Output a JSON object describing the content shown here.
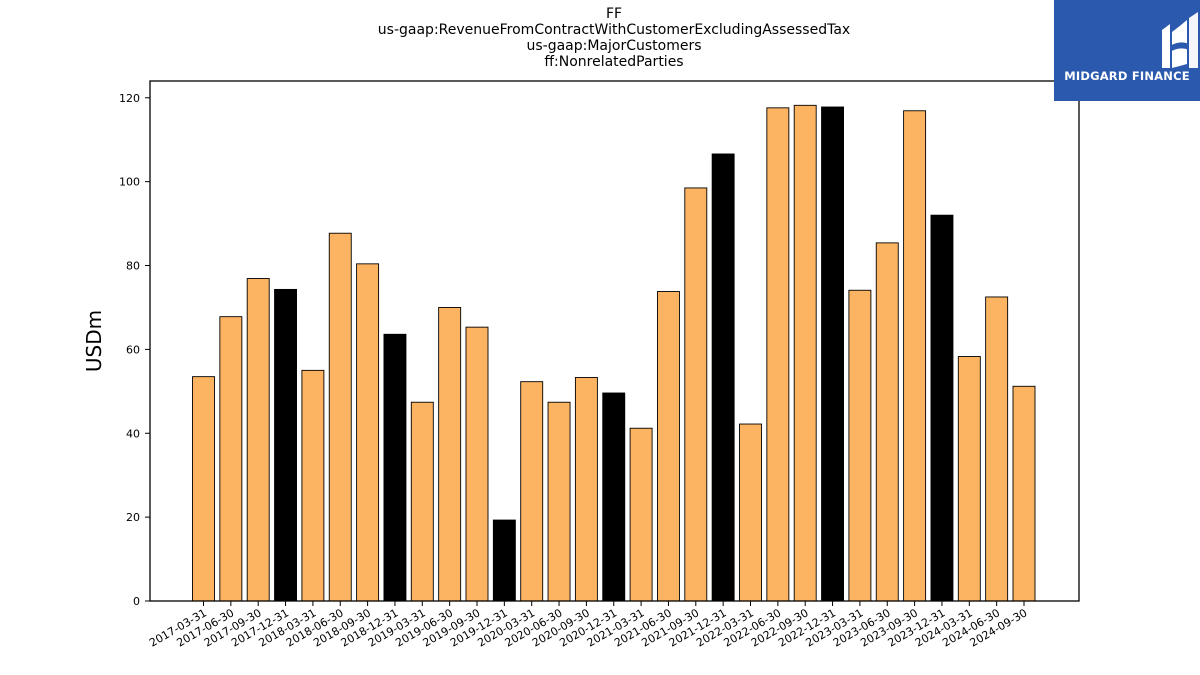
{
  "title_lines": [
    "FF",
    "us-gaap:RevenueFromContractWithCustomerExcludingAssessedTax",
    "us-gaap:MajorCustomers",
    "ff:NonrelatedParties"
  ],
  "logo": {
    "text": "MIDGARD FINANCE",
    "background": "#2b59ad"
  },
  "colors": {
    "quarter_bar": "#fdb462",
    "year_end_bar": "#000000",
    "bar_edge": "#000000"
  },
  "chart_data": {
    "type": "bar",
    "title": "FF\nus-gaap:RevenueFromContractWithCustomerExcludingAssessedTax\nus-gaap:MajorCustomers\nff:NonrelatedParties",
    "xlabel": "",
    "ylabel": "USDm",
    "ylim": [
      0,
      124
    ],
    "yticks": [
      0,
      20,
      40,
      60,
      80,
      100,
      120
    ],
    "grid": false,
    "categories": [
      "2017-03-31",
      "2017-06-30",
      "2017-09-30",
      "2017-12-31",
      "2018-03-31",
      "2018-06-30",
      "2018-09-30",
      "2018-12-31",
      "2019-03-31",
      "2019-06-30",
      "2019-09-30",
      "2019-12-31",
      "2020-03-31",
      "2020-06-30",
      "2020-09-30",
      "2020-12-31",
      "2021-03-31",
      "2021-06-30",
      "2021-09-30",
      "2021-12-31",
      "2022-03-31",
      "2022-06-30",
      "2022-09-30",
      "2022-12-31",
      "2023-03-31",
      "2023-06-30",
      "2023-09-30",
      "2023-12-31",
      "2024-03-31",
      "2024-06-30",
      "2024-09-30"
    ],
    "values": [
      53.5,
      67.8,
      76.9,
      74.3,
      55.0,
      87.7,
      80.4,
      63.6,
      47.4,
      70.0,
      65.3,
      19.3,
      52.3,
      47.4,
      53.3,
      49.6,
      41.2,
      73.8,
      98.5,
      106.6,
      42.2,
      117.6,
      118.2,
      117.8,
      74.1,
      85.4,
      116.9,
      92.0,
      58.3,
      72.5,
      51.2
    ],
    "year_end": [
      false,
      false,
      false,
      true,
      false,
      false,
      false,
      true,
      false,
      false,
      false,
      true,
      false,
      false,
      false,
      true,
      false,
      false,
      false,
      true,
      false,
      false,
      false,
      true,
      false,
      false,
      false,
      true,
      false,
      false,
      false
    ]
  }
}
